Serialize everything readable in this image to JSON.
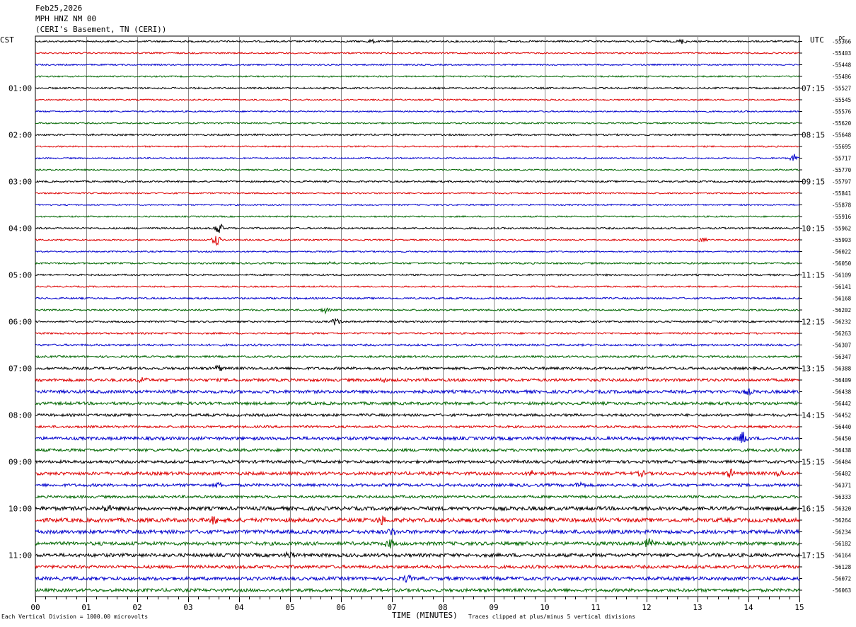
{
  "header": {
    "date": "Feb25,2026",
    "station": "MPH HNZ NM 00",
    "location": "(CERI's Basement, TN (CERI))"
  },
  "footer": {
    "scale_note": "Each Vertical Division = 1000.00 microvolts",
    "xlabel": "TIME (MINUTES)",
    "clip_note": "Traces clipped at plus/minus 5 vertical divisions"
  },
  "chart_data": {
    "type": "line",
    "title": "",
    "xlabel": "TIME (MINUTES)",
    "ylabel": "",
    "xlim": [
      0,
      15
    ],
    "x_ticks": [
      "00",
      "01",
      "02",
      "03",
      "04",
      "05",
      "06",
      "07",
      "08",
      "09",
      "10",
      "11",
      "12",
      "13",
      "14",
      "15"
    ],
    "left_axis_label": "CST",
    "right_axis_label": "UTC",
    "dc_label": "DC",
    "trace_colors": [
      "#000000",
      "#dd0000",
      "#0000cc",
      "#006600"
    ],
    "traces_per_hour": 4,
    "left_hour_labels": [
      "01:00",
      "02:00",
      "03:00",
      "04:00",
      "05:00",
      "06:00",
      "07:00",
      "08:00",
      "09:00",
      "10:00",
      "11:00"
    ],
    "right_hour_labels": [
      "07:15",
      "08:15",
      "09:15",
      "10:15",
      "11:15",
      "12:15",
      "13:15",
      "14:15",
      "15:15",
      "16:15",
      "17:15"
    ],
    "dc_offsets": [
      "-55366",
      "-55403",
      "-55448",
      "-55486",
      "-55527",
      "-55545",
      "-55576",
      "-55620",
      "-55648",
      "-55695",
      "-55717",
      "-55770",
      "-55797",
      "-55841",
      "-55878",
      "-55916",
      "-55962",
      "-55993",
      "-56022",
      "-56050",
      "-56109",
      "-56141",
      "-56168",
      "-56202",
      "-56232",
      "-56263",
      "-56307",
      "-56347",
      "-56388",
      "-56409",
      "-56438",
      "-56442",
      "-56452",
      "-56440",
      "-56450",
      "-56438",
      "-56404",
      "-56402",
      "-56371",
      "-56333",
      "-56320",
      "-56264",
      "-56234",
      "-56182",
      "-56164",
      "-56128",
      "-56072",
      "-56063"
    ],
    "noise_amplitude": [
      1.2,
      1.0,
      1.0,
      1.0,
      1.2,
      1.0,
      1.0,
      1.0,
      1.2,
      1.0,
      1.0,
      1.0,
      1.2,
      1.0,
      1.0,
      1.0,
      1.2,
      1.0,
      1.0,
      1.2,
      1.2,
      1.0,
      1.2,
      1.2,
      1.2,
      1.2,
      1.4,
      1.4,
      1.8,
      2.0,
      2.2,
      2.0,
      1.8,
      1.6,
      2.2,
      2.0,
      2.0,
      2.2,
      2.0,
      1.8,
      2.6,
      2.8,
      2.6,
      2.4,
      2.4,
      2.2,
      2.4,
      2.2
    ],
    "events": [
      {
        "trace": 0,
        "minute": 12.7,
        "amp": 3
      },
      {
        "trace": 0,
        "minute": 6.6,
        "amp": 2
      },
      {
        "trace": 10,
        "minute": 14.9,
        "amp": 5
      },
      {
        "trace": 16,
        "minute": 3.6,
        "amp": 9
      },
      {
        "trace": 17,
        "minute": 3.55,
        "amp": 8
      },
      {
        "trace": 17,
        "minute": 13.1,
        "amp": 3
      },
      {
        "trace": 19,
        "minute": 5.8,
        "amp": 2
      },
      {
        "trace": 23,
        "minute": 5.7,
        "amp": 4
      },
      {
        "trace": 24,
        "minute": 5.9,
        "amp": 5
      },
      {
        "trace": 28,
        "minute": 3.6,
        "amp": 4
      },
      {
        "trace": 29,
        "minute": 2.1,
        "amp": 4
      },
      {
        "trace": 29,
        "minute": 6.8,
        "amp": 3
      },
      {
        "trace": 30,
        "minute": 14.0,
        "amp": 3
      },
      {
        "trace": 34,
        "minute": 13.9,
        "amp": 9
      },
      {
        "trace": 37,
        "minute": 13.65,
        "amp": 5
      },
      {
        "trace": 37,
        "minute": 14.6,
        "amp": 4
      },
      {
        "trace": 37,
        "minute": 9.75,
        "amp": 3
      },
      {
        "trace": 37,
        "minute": 11.9,
        "amp": 3
      },
      {
        "trace": 38,
        "minute": 10.7,
        "amp": 4
      },
      {
        "trace": 38,
        "minute": 3.6,
        "amp": 3
      },
      {
        "trace": 40,
        "minute": 1.4,
        "amp": 4
      },
      {
        "trace": 41,
        "minute": 3.5,
        "amp": 4
      },
      {
        "trace": 41,
        "minute": 6.8,
        "amp": 5
      },
      {
        "trace": 42,
        "minute": 7.0,
        "amp": 4
      },
      {
        "trace": 43,
        "minute": 12.05,
        "amp": 7
      },
      {
        "trace": 43,
        "minute": 6.95,
        "amp": 6
      },
      {
        "trace": 44,
        "minute": 5.0,
        "amp": 4
      },
      {
        "trace": 46,
        "minute": 7.3,
        "amp": 4
      }
    ]
  }
}
